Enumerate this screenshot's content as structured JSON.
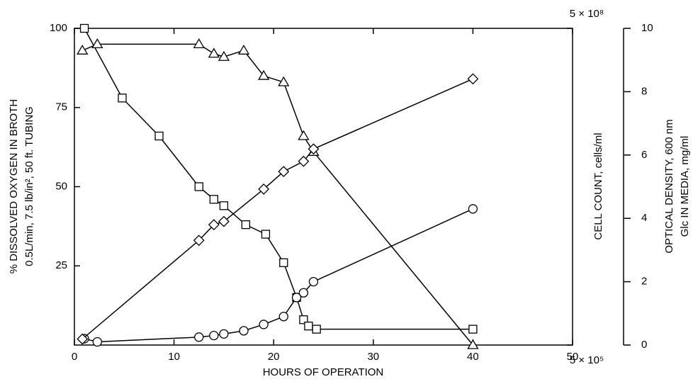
{
  "chart_data": {
    "type": "line",
    "x_label": "HOURS OF OPERATION",
    "y_label": [
      "% DISSOLVED OXYGEN IN BROTH",
      "0.5L/min, 7.5 lb/in², 50 ft. TUBING"
    ],
    "y3_label": "CELL COUNT, cells/ml",
    "y2_label": [
      "OPTICAL DENSITY, 600 nm",
      "Glc IN MEDIA, mg/ml"
    ],
    "xlim": [
      0,
      50
    ],
    "xticks": [
      0,
      10,
      20,
      30,
      40,
      50
    ],
    "ylim": [
      0,
      100
    ],
    "yticks": [
      25,
      50,
      75,
      100
    ],
    "y2lim": [
      0,
      10
    ],
    "y2ticks": [
      0,
      2,
      4,
      6,
      8,
      10
    ],
    "y3lim": [
      500000,
      500000000
    ],
    "y3_log": true,
    "y3ticks": [
      {
        "value": 500000,
        "label": "5 × 10⁵"
      },
      {
        "value": 500000000,
        "label": "5 × 10⁸"
      }
    ],
    "series": [
      {
        "marker": "square",
        "color": "#000",
        "axis": "y",
        "x": [
          1,
          4.8,
          8.5,
          12.5,
          14,
          15,
          17.2,
          19.2,
          21,
          22.3,
          23,
          23.5,
          24.3,
          40
        ],
        "values": [
          100,
          78,
          66,
          50,
          46,
          44,
          38,
          35,
          26,
          15,
          8,
          6,
          5,
          5
        ]
      },
      {
        "marker": "triangle",
        "color": "#000",
        "axis": "y2",
        "x": [
          0.8,
          2.3,
          12.5,
          14,
          15,
          17,
          19,
          21,
          23,
          24,
          40
        ],
        "values": [
          9.3,
          9.5,
          9.5,
          9.2,
          9.1,
          9.3,
          8.5,
          8.3,
          6.6,
          6.1,
          0
        ]
      },
      {
        "marker": "circle",
        "color": "#000",
        "axis": "y2",
        "x": [
          1,
          2.3,
          12.5,
          14,
          15,
          17,
          19,
          21,
          22.3,
          23,
          24,
          40
        ],
        "values": [
          0.2,
          0.1,
          0.25,
          0.3,
          0.35,
          0.45,
          0.65,
          0.9,
          1.5,
          1.65,
          2.0,
          4.3
        ]
      },
      {
        "marker": "diamond",
        "color": "#000",
        "axis": "y3",
        "x": [
          0.8,
          12.5,
          14,
          15,
          19,
          21,
          23,
          24,
          40
        ],
        "values": [
          570000,
          4900000,
          6900000,
          7400000,
          15000000,
          22000000,
          27500000,
          36000000,
          166000000
        ]
      }
    ]
  }
}
